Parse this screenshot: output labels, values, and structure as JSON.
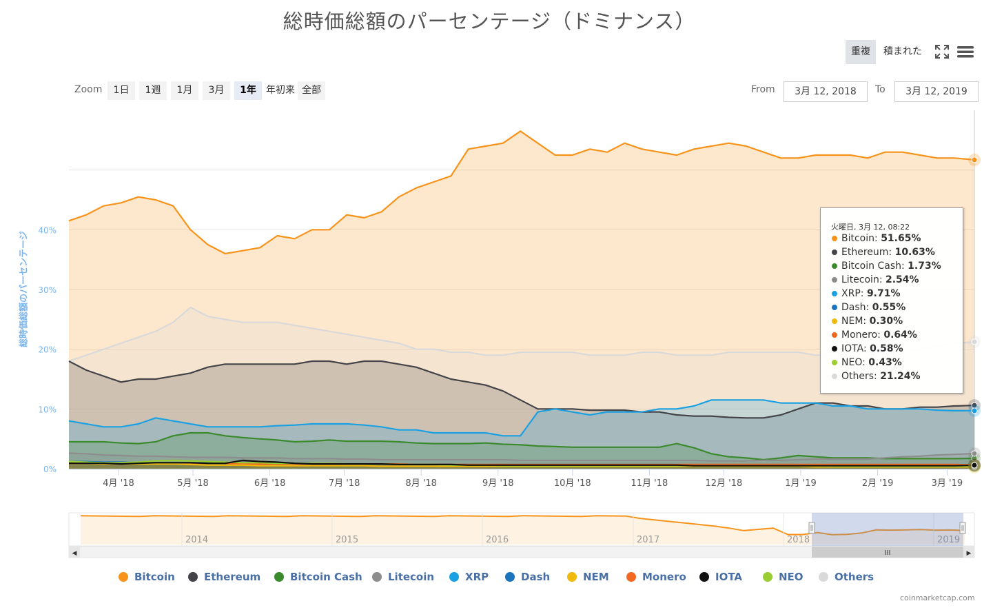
{
  "title": "総時価総額のパーセンテージ（ドミナンス）",
  "modes": {
    "overlap": "重複",
    "stacked": "積まれた"
  },
  "icons": {
    "fullscreen": "fullscreen-icon",
    "menu": "hamburger-menu-icon"
  },
  "zoom": {
    "label": "Zoom",
    "buttons": [
      "1日",
      "1週",
      "1月",
      "3月",
      "1年",
      "年初来",
      "全部"
    ],
    "active": "1年"
  },
  "range": {
    "from_label": "From",
    "to_label": "To",
    "from": "3月 12, 2018",
    "to": "3月 12, 2019"
  },
  "tooltip": {
    "header": "火曜日, 3月 12, 08:22",
    "rows": [
      {
        "name": "Bitcoin",
        "value": "51.65%"
      },
      {
        "name": "Ethereum",
        "value": "10.63%"
      },
      {
        "name": "Bitcoin Cash",
        "value": "1.73%"
      },
      {
        "name": "Litecoin",
        "value": "2.54%"
      },
      {
        "name": "XRP",
        "value": "9.71%"
      },
      {
        "name": "Dash",
        "value": "0.55%"
      },
      {
        "name": "NEM",
        "value": "0.30%"
      },
      {
        "name": "Monero",
        "value": "0.64%"
      },
      {
        "name": "IOTA",
        "value": "0.58%"
      },
      {
        "name": "NEO",
        "value": "0.43%"
      },
      {
        "name": "Others",
        "value": "21.24%"
      }
    ]
  },
  "credits": "coinmarketcap.com",
  "navigator": {
    "labels": [
      "2014",
      "2015",
      "2016",
      "2017",
      "2018",
      "2019"
    ],
    "scroll_left": "◀",
    "scroll_right": "▶",
    "grip": "III"
  },
  "chart_data": {
    "type": "area",
    "title": "総時価総額のパーセンテージ（ドミナンス）",
    "ylabel": "総時価総額のパーセンテージ",
    "ylim": [
      0,
      60
    ],
    "yticks": [
      "0%",
      "10%",
      "20%",
      "30%",
      "40%"
    ],
    "x": [
      "2018-03-12",
      "2018-03-19",
      "2018-03-26",
      "2018-04-02",
      "2018-04-09",
      "2018-04-16",
      "2018-04-23",
      "2018-04-30",
      "2018-05-07",
      "2018-05-14",
      "2018-05-21",
      "2018-05-28",
      "2018-06-04",
      "2018-06-11",
      "2018-06-18",
      "2018-06-25",
      "2018-07-02",
      "2018-07-09",
      "2018-07-16",
      "2018-07-23",
      "2018-07-30",
      "2018-08-06",
      "2018-08-13",
      "2018-08-20",
      "2018-08-27",
      "2018-09-03",
      "2018-09-10",
      "2018-09-17",
      "2018-09-24",
      "2018-10-01",
      "2018-10-08",
      "2018-10-15",
      "2018-10-22",
      "2018-10-29",
      "2018-11-05",
      "2018-11-12",
      "2018-11-19",
      "2018-11-26",
      "2018-12-03",
      "2018-12-10",
      "2018-12-17",
      "2018-12-24",
      "2018-12-31",
      "2019-01-07",
      "2019-01-14",
      "2019-01-21",
      "2019-01-28",
      "2019-02-04",
      "2019-02-11",
      "2019-02-18",
      "2019-02-25",
      "2019-03-04",
      "2019-03-12"
    ],
    "xticks": [
      "4月 '18",
      "5月 '18",
      "6月 '18",
      "7月 '18",
      "8月 '18",
      "9月 '18",
      "10月 '18",
      "11月 '18",
      "12月 '18",
      "1月 '19",
      "2月 '19",
      "3月 '19"
    ],
    "xtick_dates": [
      "2018-04-01",
      "2018-05-01",
      "2018-06-01",
      "2018-07-01",
      "2018-08-01",
      "2018-09-01",
      "2018-10-01",
      "2018-11-01",
      "2018-12-01",
      "2019-01-01",
      "2019-02-01",
      "2019-03-01"
    ],
    "series": [
      {
        "name": "Bitcoin",
        "color": "#f7931a",
        "values": [
          41.5,
          42.5,
          44,
          44.5,
          45.5,
          45,
          44,
          40,
          37.5,
          36,
          36.5,
          37,
          39,
          38.5,
          40,
          40,
          42.5,
          42,
          43,
          45.5,
          47,
          48,
          49,
          53.5,
          54,
          54.5,
          56.5,
          54.5,
          52.5,
          52.5,
          53.5,
          53,
          54.5,
          53.5,
          53,
          52.5,
          53.5,
          54,
          54.5,
          54,
          53,
          52,
          52,
          52.5,
          52.5,
          52.5,
          52,
          53,
          53,
          52.5,
          52,
          52,
          51.7
        ]
      },
      {
        "name": "Ethereum",
        "color": "#434348",
        "values": [
          18,
          16.5,
          15.5,
          14.5,
          15,
          15,
          15.5,
          16,
          17,
          17.5,
          17.5,
          17.5,
          17.5,
          17.5,
          18,
          18,
          17.5,
          18,
          18,
          17.5,
          17,
          16,
          15,
          14.5,
          14,
          13,
          11.5,
          10,
          10,
          10,
          9.8,
          9.8,
          9.8,
          9.5,
          9.5,
          9,
          8.8,
          8.8,
          8.6,
          8.5,
          8.5,
          9,
          10,
          11,
          11,
          10.5,
          10.5,
          10,
          10,
          10.3,
          10.3,
          10.5,
          10.6
        ]
      },
      {
        "name": "Bitcoin Cash",
        "color": "#3c8a2e",
        "values": [
          4.5,
          4.5,
          4.5,
          4.3,
          4.2,
          4.5,
          5.5,
          6,
          6,
          5.5,
          5.2,
          5,
          4.8,
          4.5,
          4.6,
          4.8,
          4.6,
          4.6,
          4.6,
          4.5,
          4.3,
          4.2,
          4.2,
          4.2,
          4.3,
          4.1,
          4,
          3.8,
          3.7,
          3.6,
          3.6,
          3.6,
          3.6,
          3.6,
          3.6,
          4.2,
          3.5,
          2.5,
          2,
          1.8,
          1.5,
          1.8,
          2.2,
          2,
          1.8,
          1.8,
          1.8,
          1.7,
          1.7,
          1.7,
          1.7,
          1.7,
          1.73
        ]
      },
      {
        "name": "Litecoin",
        "color": "#8d8d8d",
        "values": [
          2.6,
          2.5,
          2.3,
          2.2,
          2.1,
          2.1,
          2.0,
          1.9,
          1.9,
          1.9,
          1.8,
          1.8,
          1.8,
          1.7,
          1.7,
          1.7,
          1.6,
          1.6,
          1.5,
          1.5,
          1.5,
          1.5,
          1.5,
          1.5,
          1.5,
          1.5,
          1.4,
          1.4,
          1.4,
          1.4,
          1.4,
          1.4,
          1.4,
          1.4,
          1.4,
          1.4,
          1.4,
          1.3,
          1.3,
          1.3,
          1.4,
          1.4,
          1.5,
          1.6,
          1.6,
          1.6,
          1.6,
          1.8,
          2.0,
          2.1,
          2.3,
          2.4,
          2.54
        ]
      },
      {
        "name": "XRP",
        "color": "#1ba1e2",
        "values": [
          8,
          7.5,
          7,
          7,
          7.5,
          8.5,
          8,
          7.5,
          7,
          7,
          7,
          7,
          7.2,
          7.3,
          7.5,
          7.5,
          7.5,
          7.3,
          7,
          6.5,
          6.5,
          6,
          6,
          6,
          6,
          5.5,
          5.5,
          9.5,
          10,
          9.5,
          9,
          9.5,
          9.5,
          9.5,
          10,
          10,
          10.5,
          11.5,
          11.5,
          11.5,
          11.5,
          11,
          11,
          11,
          10.5,
          10.5,
          10,
          10,
          10,
          10,
          9.8,
          9.7,
          9.71
        ]
      },
      {
        "name": "Dash",
        "color": "#1c75bc",
        "values": [
          1.2,
          1.2,
          1.1,
          1.1,
          1.0,
          1.0,
          1.0,
          1.0,
          1.0,
          0.9,
          0.9,
          0.9,
          0.9,
          0.9,
          0.9,
          0.8,
          0.8,
          0.8,
          0.8,
          0.7,
          0.7,
          0.7,
          0.7,
          0.7,
          0.7,
          0.7,
          0.7,
          0.7,
          0.7,
          0.7,
          0.7,
          0.7,
          0.7,
          0.7,
          0.7,
          0.7,
          0.6,
          0.6,
          0.6,
          0.6,
          0.6,
          0.6,
          0.6,
          0.6,
          0.6,
          0.6,
          0.6,
          0.6,
          0.6,
          0.6,
          0.6,
          0.55,
          0.55
        ]
      },
      {
        "name": "NEM",
        "color": "#f0b90b",
        "values": [
          0.9,
          0.9,
          0.8,
          0.8,
          0.8,
          0.8,
          0.8,
          0.7,
          0.6,
          0.6,
          0.6,
          0.5,
          0.5,
          0.5,
          0.5,
          0.5,
          0.5,
          0.5,
          0.4,
          0.4,
          0.4,
          0.4,
          0.4,
          0.4,
          0.4,
          0.4,
          0.4,
          0.4,
          0.4,
          0.4,
          0.4,
          0.4,
          0.4,
          0.4,
          0.4,
          0.4,
          0.4,
          0.4,
          0.4,
          0.4,
          0.4,
          0.4,
          0.4,
          0.3,
          0.3,
          0.3,
          0.3,
          0.3,
          0.3,
          0.3,
          0.3,
          0.3,
          0.3
        ]
      },
      {
        "name": "Monero",
        "color": "#f26822",
        "values": [
          0.9,
          0.9,
          0.9,
          0.9,
          0.9,
          0.9,
          0.9,
          0.9,
          0.9,
          0.9,
          0.8,
          0.8,
          0.8,
          0.8,
          0.8,
          0.8,
          0.8,
          0.8,
          0.8,
          0.8,
          0.7,
          0.7,
          0.7,
          0.7,
          0.7,
          0.7,
          0.7,
          0.7,
          0.7,
          0.7,
          0.7,
          0.7,
          0.7,
          0.7,
          0.7,
          0.7,
          0.7,
          0.7,
          0.7,
          0.7,
          0.7,
          0.7,
          0.7,
          0.7,
          0.7,
          0.7,
          0.7,
          0.7,
          0.7,
          0.7,
          0.7,
          0.7,
          0.64
        ]
      },
      {
        "name": "IOTA",
        "color": "#111111",
        "values": [
          0.9,
          0.9,
          0.9,
          0.8,
          0.9,
          1.0,
          1.0,
          1.0,
          0.9,
          0.9,
          1.4,
          1.2,
          1.1,
          0.9,
          0.8,
          0.8,
          0.8,
          0.8,
          0.8,
          0.7,
          0.7,
          0.7,
          0.7,
          0.6,
          0.6,
          0.6,
          0.6,
          0.6,
          0.6,
          0.6,
          0.6,
          0.6,
          0.6,
          0.6,
          0.6,
          0.6,
          0.5,
          0.5,
          0.5,
          0.5,
          0.5,
          0.5,
          0.5,
          0.5,
          0.5,
          0.5,
          0.5,
          0.5,
          0.5,
          0.5,
          0.5,
          0.5,
          0.58
        ]
      },
      {
        "name": "NEO",
        "color": "#9acd32",
        "values": [
          1.2,
          1.1,
          1.0,
          1.0,
          1.1,
          1.3,
          1.4,
          1.3,
          1.2,
          1.1,
          1.0,
          1.0,
          0.9,
          0.9,
          0.9,
          0.9,
          0.8,
          0.8,
          0.8,
          0.7,
          0.7,
          0.7,
          0.6,
          0.6,
          0.6,
          0.5,
          0.5,
          0.5,
          0.5,
          0.5,
          0.5,
          0.5,
          0.5,
          0.5,
          0.5,
          0.5,
          0.5,
          0.5,
          0.5,
          0.5,
          0.5,
          0.5,
          0.5,
          0.5,
          0.4,
          0.4,
          0.4,
          0.4,
          0.4,
          0.4,
          0.4,
          0.4,
          0.43
        ]
      },
      {
        "name": "Others",
        "color": "#d9d9d9",
        "values": [
          18,
          19,
          20,
          21,
          22,
          23,
          24.5,
          27,
          25.5,
          25,
          24.5,
          24.5,
          24.5,
          24,
          23.5,
          23,
          22.5,
          22,
          21.5,
          21,
          20,
          20,
          19.5,
          19.5,
          19,
          19,
          19.5,
          19.5,
          19.5,
          19.5,
          19,
          19,
          19,
          19.5,
          19.5,
          19,
          19,
          19,
          19.5,
          19.5,
          19.5,
          19.5,
          19.5,
          19,
          19,
          19.5,
          19.5,
          19.5,
          19.5,
          20,
          20.5,
          21,
          21.24
        ]
      }
    ],
    "legend": [
      "Bitcoin",
      "Ethereum",
      "Bitcoin Cash",
      "Litecoin",
      "XRP",
      "Dash",
      "NEM",
      "Monero",
      "IOTA",
      "NEO",
      "Others"
    ],
    "legend_position": "bottom",
    "grid": true
  }
}
